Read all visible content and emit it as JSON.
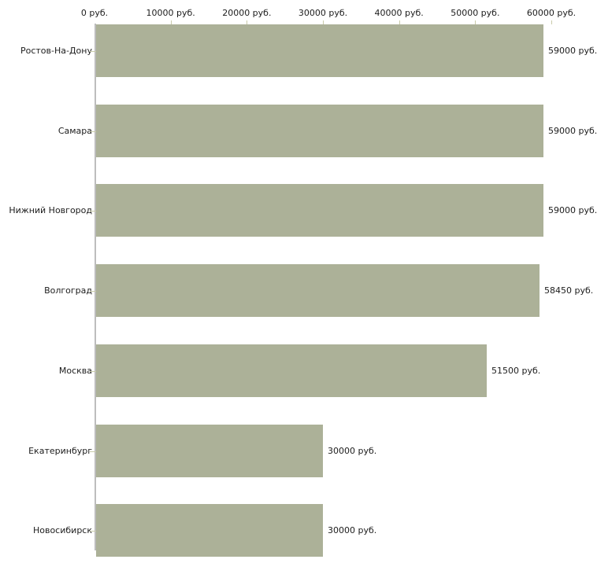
{
  "chart_data": {
    "type": "bar",
    "orientation": "horizontal",
    "title": "",
    "xlabel": "",
    "ylabel": "",
    "unit": "руб.",
    "categories": [
      "Ростов-На-Дону",
      "Самара",
      "Нижний Новгород",
      "Волгоград",
      "Москва",
      "Екатеринбург",
      "Новосибирск"
    ],
    "values": [
      59000,
      59000,
      59000,
      58450,
      51500,
      30000,
      30000
    ],
    "value_labels": [
      "59000 руб.",
      "59000 руб.",
      "59000 руб.",
      "58450 руб.",
      "51500 руб.",
      "30000 руб.",
      "30000 руб."
    ],
    "xlim": [
      0,
      60000
    ],
    "x_ticks": [
      0,
      10000,
      20000,
      30000,
      40000,
      50000,
      60000
    ],
    "x_tick_labels": [
      "0 руб.",
      "10000 руб.",
      "20000 руб.",
      "30000 руб.",
      "40000 руб.",
      "50000 руб.",
      "60000 руб."
    ],
    "x_axis_position": "top",
    "grid": false,
    "legend": false,
    "colors": {
      "bar_fill": "#acb198",
      "tick_mark": "#c9cbaa",
      "axis_line": "#bdbdbd",
      "text": "#1c1c1c",
      "background": "#ffffff"
    }
  }
}
